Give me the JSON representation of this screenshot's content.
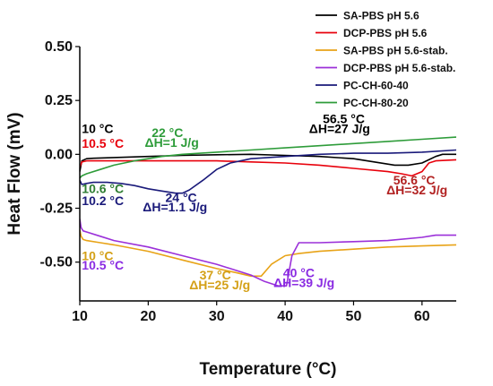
{
  "chart_data": {
    "type": "line",
    "title": "",
    "xlabel": "Temperature (°C)",
    "ylabel": "Heat Flow (mV)",
    "xlim": [
      10,
      65
    ],
    "ylim": [
      -0.68,
      0.5
    ],
    "xticks": [
      10,
      20,
      30,
      40,
      50,
      60
    ],
    "xtick_labels": [
      "10",
      "20",
      "30",
      "40",
      "50",
      "60"
    ],
    "yticks": [
      -0.5,
      -0.25,
      0.0,
      0.25,
      0.5
    ],
    "ytick_labels": [
      "-0.50",
      "-0.25",
      "0.00",
      "0.25",
      "0.50"
    ],
    "grid": false,
    "legend_position": "top-right",
    "series": [
      {
        "name": "SA-PBS pH 5.6",
        "color": "#000000",
        "x": [
          10,
          10.3,
          11,
          12,
          15,
          20,
          25,
          30,
          35,
          40,
          45,
          50,
          53,
          56,
          58,
          60,
          62,
          63,
          65
        ],
        "y": [
          -0.08,
          -0.03,
          -0.02,
          -0.018,
          -0.015,
          -0.01,
          -0.005,
          -0.002,
          0.0,
          -0.005,
          -0.01,
          -0.02,
          -0.035,
          -0.05,
          -0.05,
          -0.04,
          -0.01,
          0.0,
          0.0
        ]
      },
      {
        "name": "DCP-PBS pH 5.6",
        "color": "#e8000b",
        "x": [
          10,
          10.3,
          11,
          15,
          20,
          25,
          30,
          35,
          40,
          45,
          50,
          55,
          57,
          58.5,
          60,
          61,
          62,
          65
        ],
        "y": [
          -0.06,
          -0.035,
          -0.03,
          -0.03,
          -0.03,
          -0.03,
          -0.03,
          -0.035,
          -0.04,
          -0.05,
          -0.065,
          -0.08,
          -0.09,
          -0.1,
          -0.08,
          -0.04,
          -0.03,
          -0.025
        ]
      },
      {
        "name": "SA-PBS pH 5.6-stab.",
        "color": "#e8a317",
        "x": [
          10,
          10.2,
          10.5,
          11,
          13,
          15,
          20,
          25,
          30,
          33,
          35,
          36.5,
          38,
          40,
          42,
          45,
          50,
          55,
          60,
          65
        ],
        "y": [
          -0.35,
          -0.38,
          -0.395,
          -0.4,
          -0.41,
          -0.42,
          -0.45,
          -0.49,
          -0.53,
          -0.55,
          -0.565,
          -0.565,
          -0.51,
          -0.47,
          -0.46,
          -0.45,
          -0.44,
          -0.43,
          -0.425,
          -0.42
        ]
      },
      {
        "name": "DCP-PBS pH 5.6-stab.",
        "color": "#9b30d9",
        "x": [
          10,
          10.2,
          10.5,
          11,
          13,
          15,
          20,
          25,
          30,
          35,
          37,
          39,
          40.2,
          41,
          42,
          45,
          50,
          55,
          60,
          62,
          65
        ],
        "y": [
          -0.3,
          -0.34,
          -0.355,
          -0.36,
          -0.38,
          -0.4,
          -0.43,
          -0.47,
          -0.51,
          -0.56,
          -0.59,
          -0.61,
          -0.61,
          -0.47,
          -0.41,
          -0.41,
          -0.405,
          -0.4,
          -0.385,
          -0.375,
          -0.375
        ]
      },
      {
        "name": "PC-CH-60-40",
        "color": "#1a1a7a",
        "x": [
          10,
          10.3,
          11,
          12,
          14,
          16,
          18,
          20,
          22,
          24,
          25,
          26,
          28,
          30,
          32,
          35,
          40,
          45,
          50,
          55,
          60,
          65
        ],
        "y": [
          -0.12,
          -0.14,
          -0.135,
          -0.13,
          -0.13,
          -0.135,
          -0.145,
          -0.16,
          -0.17,
          -0.18,
          -0.18,
          -0.165,
          -0.12,
          -0.07,
          -0.04,
          -0.02,
          -0.01,
          0.0,
          0.005,
          0.005,
          0.01,
          0.02
        ]
      },
      {
        "name": "PC-CH-80-20",
        "color": "#2e9c3a",
        "x": [
          10,
          10.3,
          11,
          13,
          15,
          18,
          20,
          22,
          25,
          30,
          35,
          40,
          45,
          50,
          55,
          60,
          65
        ],
        "y": [
          -0.11,
          -0.1,
          -0.09,
          -0.07,
          -0.05,
          -0.03,
          -0.02,
          -0.01,
          0.0,
          0.01,
          0.02,
          0.03,
          0.04,
          0.05,
          0.06,
          0.07,
          0.08
        ]
      }
    ],
    "annotations": [
      {
        "text": "10 °C",
        "color": "#000000",
        "x": 10.3,
        "y": 0.1
      },
      {
        "text": "10.5 °C",
        "color": "#e8000b",
        "x": 10.3,
        "y": 0.03
      },
      {
        "text": "22 °C",
        "color": "#2e9c3a",
        "x": 20.5,
        "y": 0.08
      },
      {
        "text": "ΔH=1 J/g",
        "color": "#2e9c3a",
        "x": 19.5,
        "y": 0.035
      },
      {
        "text": "56.5 °C",
        "color": "#000000",
        "x": 45.5,
        "y": 0.145
      },
      {
        "text": "ΔH=27 J/g",
        "color": "#000000",
        "x": 43.5,
        "y": 0.1
      },
      {
        "text": "56.6 °C",
        "color": "#b22222",
        "x": 55.8,
        "y": -0.14
      },
      {
        "text": "ΔH=32 J/g",
        "color": "#b22222",
        "x": 54.8,
        "y": -0.185
      },
      {
        "text": "10.6 °C",
        "color": "#2e7d32",
        "x": 10.3,
        "y": -0.18
      },
      {
        "text": "10.2 °C",
        "color": "#1a1a7a",
        "x": 10.3,
        "y": -0.235
      },
      {
        "text": "24 °C",
        "color": "#1a1a7a",
        "x": 22.5,
        "y": -0.22
      },
      {
        "text": "ΔH=1.1 J/g",
        "color": "#1a1a7a",
        "x": 19.2,
        "y": -0.265
      },
      {
        "text": "10 °C",
        "color": "#d4a017",
        "x": 10.3,
        "y": -0.49
      },
      {
        "text": "10.5 °C",
        "color": "#8a2be2",
        "x": 10.3,
        "y": -0.535
      },
      {
        "text": "37 °C",
        "color": "#d4a017",
        "x": 27.5,
        "y": -0.58
      },
      {
        "text": "ΔH=25 J/g",
        "color": "#d4a017",
        "x": 26.0,
        "y": -0.625
      },
      {
        "text": "40 °C",
        "color": "#8a2be2",
        "x": 39.7,
        "y": -0.57
      },
      {
        "text": "ΔH=39 J/g",
        "color": "#8a2be2",
        "x": 38.3,
        "y": -0.615
      }
    ]
  }
}
